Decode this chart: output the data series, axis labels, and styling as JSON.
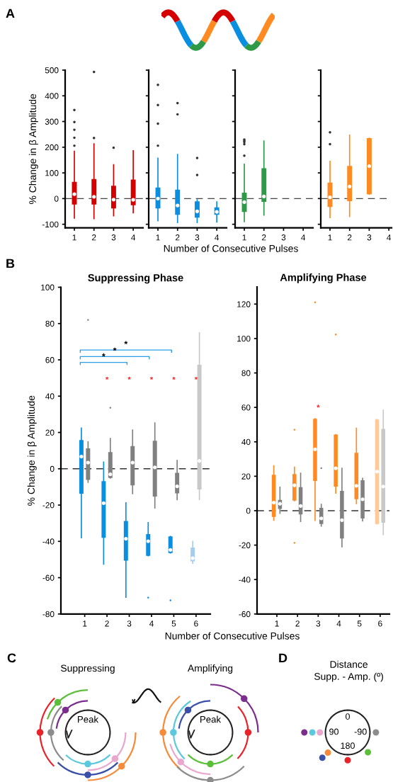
{
  "chart_data": [
    {
      "type": "box",
      "xlabel": "Number of Consecutive Pulses",
      "ylabel": "% Change in β Amplitude",
      "annotations": [
        "A"
      ],
      "categories": [
        "1",
        "2",
        "3",
        "4"
      ],
      "ylim": [
        -114,
        500
      ],
      "yticks": [
        -100,
        0,
        100,
        200,
        300,
        400,
        500
      ],
      "ref_lines": [
        {
          "axis": "y",
          "value": 0,
          "line_style": "dashed",
          "color": "#444444"
        }
      ],
      "series": [
        {
          "color": "#d40000",
          "boxes": [
            {
              "low": -76,
              "q1": -23,
              "median": 17,
              "q3": 65,
              "high": 184,
              "outliers": [
                345,
                298,
                268,
                237,
                206
              ]
            },
            {
              "low": -78,
              "q1": -23,
              "median": 7,
              "q3": 76,
              "high": 213,
              "outliers": [
                236,
                493
              ]
            },
            {
              "low": -67,
              "q1": -38,
              "median": -4,
              "q3": 50,
              "high": 132,
              "outliers": [
                198
              ]
            },
            {
              "low": -55,
              "q1": -26,
              "median": -5,
              "q3": 74,
              "high": 186
            }
          ]
        }
      ]
    },
    {
      "type": "box",
      "categories": [
        "1",
        "2",
        "3",
        "4"
      ],
      "ylim": [
        -114,
        500
      ],
      "yticks": [
        -100,
        0,
        100,
        200,
        300,
        400,
        500
      ],
      "tick_labels": "x",
      "ref_lines": [
        {
          "axis": "y",
          "value": 0,
          "line_style": "dashed",
          "color": "#444444"
        }
      ],
      "series": [
        {
          "color": "#0a8ee0",
          "boxes": [
            {
              "low": -86,
              "q1": -38,
              "median": 0,
              "q3": 43,
              "high": 157,
              "outliers": [
                443,
                364,
                292,
                206
              ]
            },
            {
              "low": -93,
              "q1": -63,
              "median": -27,
              "q3": 35,
              "high": 172,
              "outliers": [
                372,
                328
              ]
            },
            {
              "low": -93,
              "q1": -74,
              "median": -50,
              "q3": -11,
              "high": -5,
              "outliers": [
                158,
                92
              ]
            },
            {
              "low": -91,
              "q1": -63,
              "median": -52,
              "q3": -34,
              "high": -13
            }
          ]
        }
      ]
    },
    {
      "type": "box",
      "categories": [
        "1",
        "2",
        "3",
        "4"
      ],
      "ylim": [
        -114,
        500
      ],
      "yticks": [
        -100,
        0,
        100,
        200,
        300,
        400,
        500
      ],
      "tick_labels": "x",
      "ref_lines": [
        {
          "axis": "y",
          "value": 0,
          "line_style": "dashed",
          "color": "#444444"
        }
      ],
      "series": [
        {
          "color": "#2e9a47",
          "boxes": [
            {
              "low": -90,
              "q1": -52,
              "median": -14,
              "q3": 23,
              "high": 134,
              "outliers": [
                230,
                225,
                220,
                212,
                167
              ]
            },
            {
              "low": -64,
              "q1": -13,
              "median": 8,
              "q3": 118,
              "high": 224
            },
            null,
            null
          ]
        }
      ]
    },
    {
      "type": "box",
      "categories": [
        "1",
        "2",
        "3",
        "4"
      ],
      "ylim": [
        -114,
        500
      ],
      "yticks": [
        -100,
        0,
        100,
        200,
        300,
        400,
        500
      ],
      "tick_labels": "x",
      "ref_lines": [
        {
          "axis": "y",
          "value": 0,
          "line_style": "dashed",
          "color": "#444444"
        }
      ],
      "series": [
        {
          "color": "#ff8a22",
          "boxes": [
            {
              "low": -74,
              "q1": -33,
              "median": 5,
              "q3": 62,
              "high": 145,
              "outliers": [
                258,
                212
              ]
            },
            {
              "low": -70,
              "q1": -10,
              "median": 47,
              "q3": 127,
              "high": 247
            },
            {
              "low": 17,
              "q1": 17,
              "median": 126,
              "q3": 235,
              "high": 235
            },
            null
          ]
        }
      ]
    },
    {
      "type": "box",
      "title": "Suppressing Phase",
      "xlabel": "Number of Consecutive Pulses",
      "ylabel": "% Change in β Amplitude",
      "categories": [
        "1",
        "2",
        "3",
        "4",
        "5",
        "6"
      ],
      "ylim": [
        -80,
        100
      ],
      "yticks": [
        -80,
        -60,
        -40,
        -20,
        0,
        20,
        40,
        60,
        80,
        100
      ],
      "ref_lines": [
        {
          "axis": "y",
          "value": 0,
          "line_style": "dashed",
          "color": "#333333"
        }
      ],
      "annotations": [
        "B",
        "*",
        "*",
        "*",
        "*",
        "*",
        "*",
        "*",
        "*"
      ],
      "series": [
        {
          "color": "#0a8ee0",
          "colors": [
            "#0a8ee0",
            "#0a8ee0",
            "#0a8ee0",
            "#0a8ee0",
            "#0a8ee0",
            "#a6cdf0"
          ],
          "boxes": [
            {
              "low": -38,
              "q1": -13.7,
              "median": 6.7,
              "q3": 15.8,
              "high": 22.4
            },
            {
              "low": -52.5,
              "q1": -38,
              "median": -19,
              "q3": -6.8,
              "high": 3.7
            },
            {
              "low": -70.8,
              "q1": -50.6,
              "median": -38.6,
              "q3": -28.8,
              "high": -18.8
            },
            {
              "low": -48,
              "q1": -48,
              "median": -39.9,
              "q3": -36,
              "high": -29.7,
              "outliers": [
                -71
              ]
            },
            {
              "low": -46.4,
              "q1": -46.4,
              "median": -44.7,
              "q3": -37.3,
              "high": -37.3,
              "outliers": [
                -72.5
              ]
            },
            {
              "low": -52,
              "q1": -51,
              "median": -49.3,
              "q3": -43.4,
              "high": -40
            }
          ]
        },
        {
          "color": "#808080",
          "colors": [
            "#808080",
            "#808080",
            "#808080",
            "#808080",
            "#808080",
            "#c8c8c8"
          ],
          "boxes": [
            {
              "low": -7.5,
              "q1": -6.1,
              "median": 3.4,
              "q3": 11.2,
              "high": 14.8,
              "outliers": [
                82
              ]
            },
            {
              "low": -5.1,
              "q1": -5.1,
              "median": -3.1,
              "q3": 9.2,
              "high": 16.7,
              "outliers": [
                33.6
              ]
            },
            {
              "low": -13.7,
              "q1": -9.2,
              "median": 3.4,
              "q3": 12.5,
              "high": 21.3
            },
            {
              "low": -21.6,
              "q1": -15.3,
              "median": 0.7,
              "q3": 15.4,
              "high": 25.2
            },
            {
              "low": -17,
              "q1": -13.5,
              "median": -9.7,
              "q3": -2.2,
              "high": 4.6
            },
            {
              "low": -16.9,
              "q1": -11.4,
              "median": 4.3,
              "q3": 57.3,
              "high": 74.9
            }
          ]
        }
      ]
    },
    {
      "type": "box",
      "title": "Amplifying Phase",
      "categories": [
        "1",
        "2",
        "3",
        "4",
        "5",
        "6"
      ],
      "ylim": [
        -60,
        130
      ],
      "yticks": [
        -60,
        -40,
        -20,
        0,
        20,
        40,
        60,
        80,
        100,
        120
      ],
      "ref_lines": [
        {
          "axis": "y",
          "value": 0,
          "line_style": "dashed",
          "color": "#333333"
        }
      ],
      "annotations": [
        "*"
      ],
      "series": [
        {
          "color": "#ff8a22",
          "colors": [
            "#ff8a22",
            "#ff8a22",
            "#ff8a22",
            "#ff8a22",
            "#ff8a22",
            "#ffc999"
          ],
          "boxes": [
            {
              "low": -5.5,
              "q1": -3.6,
              "median": 4.7,
              "q3": 20.9,
              "high": 26.1
            },
            {
              "low": 5.8,
              "q1": 5.8,
              "median": 14.7,
              "q3": 21.3,
              "high": 25.3,
              "outliers": [
                47,
                -18.7
              ]
            },
            {
              "low": -5.6,
              "q1": 17.3,
              "median": 35.6,
              "q3": 53.4,
              "high": 53.4,
              "outliers": [
                121
              ]
            },
            {
              "low": 10.2,
              "q1": 14,
              "median": 24.6,
              "q3": 44.2,
              "high": 44.2,
              "outliers": [
                102.3
              ]
            },
            {
              "low": 4.1,
              "q1": 6.7,
              "median": 14.4,
              "q3": 33.6,
              "high": 47.9
            },
            {
              "low": -7.7,
              "q1": -7.7,
              "median": 22.7,
              "q3": 53,
              "high": 53
            }
          ]
        },
        {
          "color": "#808080",
          "colors": [
            "#808080",
            "#808080",
            "#808080",
            "#808080",
            "#808080",
            "#c8c8c8"
          ],
          "boxes": [
            {
              "low": -1.5,
              "q1": 1,
              "median": 4,
              "q3": 6.3,
              "high": 13.6
            },
            {
              "low": -6.3,
              "q1": -2.2,
              "median": 2.7,
              "q3": 13.7,
              "high": 21.8
            },
            {
              "low": -8.9,
              "q1": -7.7,
              "median": -4.5,
              "q3": 1.6,
              "high": 3.7,
              "outliers": [
                24.7
              ]
            },
            {
              "low": -21,
              "q1": -16.2,
              "median": -5.5,
              "q3": 11.5,
              "high": 24.6
            },
            {
              "low": -5.9,
              "q1": -4.5,
              "median": 6.6,
              "q3": 17.7,
              "high": 18.8
            },
            {
              "low": -13.9,
              "q1": -7,
              "median": 14,
              "q3": 47.5,
              "high": 58.4
            }
          ]
        }
      ]
    },
    {
      "type": "other",
      "title": "Suppressing",
      "annotations": [
        "C",
        "Peak"
      ]
    },
    {
      "type": "other",
      "title": "Amplifying",
      "annotations": [
        "Peak"
      ]
    },
    {
      "type": "other",
      "title": "Distance\nSupp. - Amp. (º)",
      "annotations": [
        "D",
        "0",
        "90",
        "-90",
        "180"
      ]
    }
  ]
}
